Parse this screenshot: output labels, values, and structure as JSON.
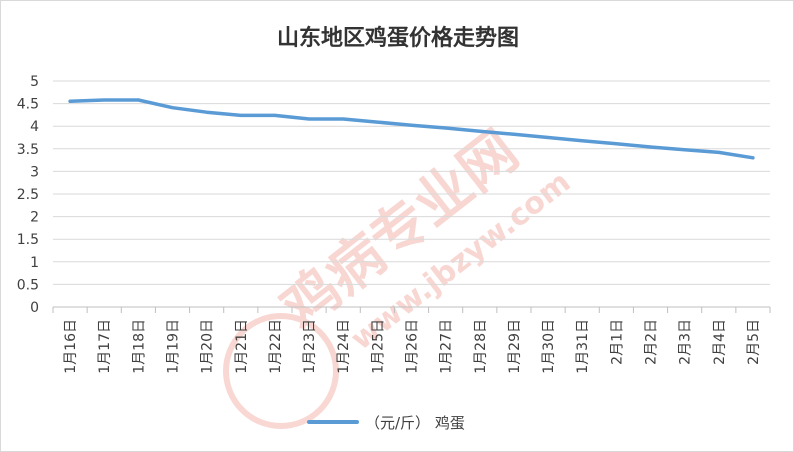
{
  "chart_data": {
    "type": "line",
    "title": "山东地区鸡蛋价格走势图",
    "xlabel": "",
    "ylabel": "",
    "categories": [
      "1月16日",
      "1月17日",
      "1月18日",
      "1月19日",
      "1月20日",
      "1月21日",
      "1月22日",
      "1月23日",
      "1月24日",
      "1月25日",
      "1月26日",
      "1月27日",
      "1月28日",
      "1月29日",
      "1月30日",
      "1月31日",
      "2月1日",
      "2月2日",
      "2月3日",
      "2月4日",
      "2月5日"
    ],
    "series": [
      {
        "name": "（元/斤） 鸡蛋",
        "values": [
          4.55,
          4.58,
          4.58,
          4.41,
          4.31,
          4.24,
          4.24,
          4.16,
          4.16,
          4.09,
          4.02,
          3.96,
          3.89,
          3.82,
          3.75,
          3.68,
          3.61,
          3.54,
          3.48,
          3.42,
          3.3
        ],
        "color": "#5b9bd5"
      }
    ],
    "ylim": [
      0,
      5
    ],
    "yticks": [
      "0",
      "0.5",
      "1",
      "1.5",
      "2",
      "2.5",
      "3",
      "3.5",
      "4",
      "4.5",
      "5"
    ],
    "grid": true,
    "legend": "bottom",
    "gridline_color": "#d9d9d9",
    "axis_color": "#bfbfbf",
    "watermark": {
      "brand": "鸡病专业网",
      "url": "www.jbzyw.com",
      "color": "#f4b8b0"
    }
  }
}
